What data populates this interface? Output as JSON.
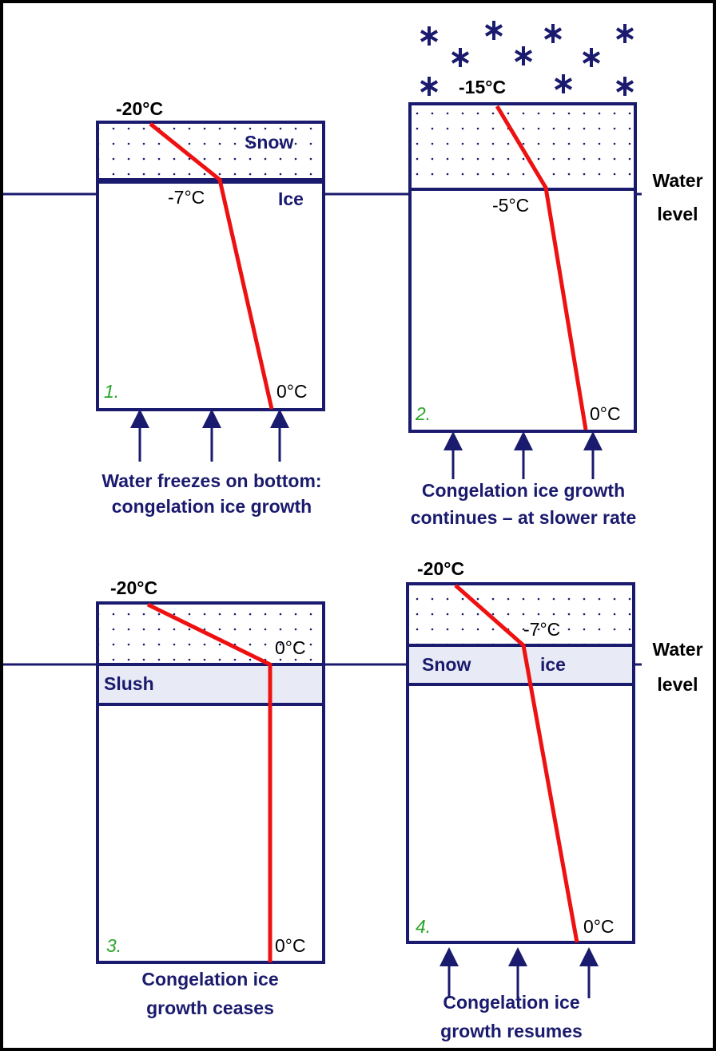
{
  "panels": [
    {
      "number": "1.",
      "top": "-20°C",
      "layer_top": "Snow",
      "mid": "-7°C",
      "layer_bottom": "Ice",
      "bottom": "0°C",
      "caption": [
        "Water freezes on bottom:",
        "congelation ice growth"
      ]
    },
    {
      "number": "2.",
      "top": "-15°C",
      "mid": "-5°C",
      "bottom": "0°C",
      "caption": [
        "Congelation ice growth",
        "continues – at slower rate"
      ],
      "side": [
        "Water",
        "level"
      ]
    },
    {
      "number": "3.",
      "top": "-20°C",
      "mid": "0°C",
      "band": "Slush",
      "bottom": "0°C",
      "caption": [
        "Congelation ice",
        "growth ceases"
      ]
    },
    {
      "number": "4.",
      "top": "-20°C",
      "mid": "-7°C",
      "band": [
        "Snow",
        "ice"
      ],
      "bottom": "0°C",
      "caption": [
        "Congelation ice",
        "growth resumes"
      ],
      "side": [
        "Water",
        "level"
      ]
    }
  ]
}
